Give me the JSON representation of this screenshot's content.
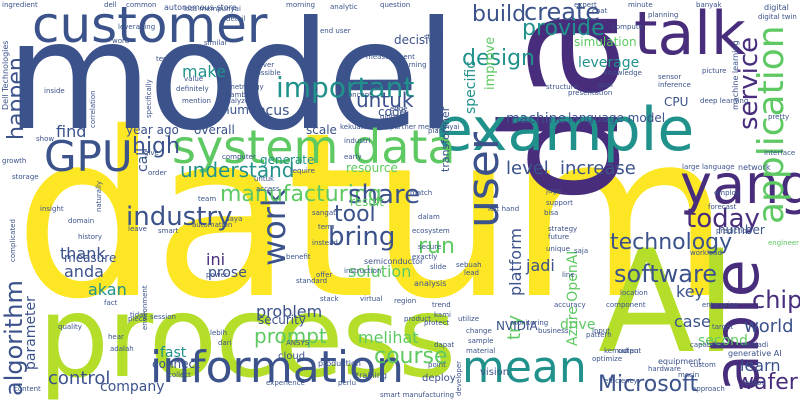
{
  "colors": {
    "background": "#ffffff",
    "navy": "#3b528b",
    "purple": "#472d7b",
    "teal": "#21918c",
    "green": "#5ec962",
    "lime": "#b5de2b",
    "yellow": "#fde725"
  },
  "words": [
    {
      "text": "datum",
      "color": "yellow"
    },
    {
      "text": "model",
      "color": "navy"
    },
    {
      "text": "dan",
      "color": "purple"
    },
    {
      "text": "process",
      "color": "lime"
    },
    {
      "text": "AI",
      "color": "lime"
    },
    {
      "text": "customer",
      "color": "navy"
    },
    {
      "text": "example",
      "color": "teal"
    },
    {
      "text": "talk",
      "color": "purple"
    },
    {
      "text": "system",
      "color": "green"
    },
    {
      "text": "data",
      "color": "green"
    },
    {
      "text": "yang",
      "color": "purple"
    },
    {
      "text": "information",
      "color": "navy"
    },
    {
      "text": "mean",
      "color": "teal"
    },
    {
      "text": "GPU",
      "color": "navy"
    },
    {
      "text": "user",
      "color": "navy"
    },
    {
      "text": "able",
      "color": "purple"
    },
    {
      "text": "work",
      "color": "navy"
    },
    {
      "text": "application",
      "color": "green"
    },
    {
      "text": "technology",
      "color": "navy"
    },
    {
      "text": "industry",
      "color": "navy"
    },
    {
      "text": "important",
      "color": "teal"
    },
    {
      "text": "software",
      "color": "navy"
    },
    {
      "text": "Microsoft",
      "color": "navy"
    },
    {
      "text": "algorithm",
      "color": "navy"
    },
    {
      "text": "manufacturing",
      "color": "green"
    },
    {
      "text": "course",
      "color": "green"
    },
    {
      "text": "create",
      "color": "navy"
    },
    {
      "text": "provide",
      "color": "teal"
    },
    {
      "text": "build",
      "color": "navy"
    },
    {
      "text": "design",
      "color": "teal"
    },
    {
      "text": "service",
      "color": "purple"
    },
    {
      "text": "today",
      "color": "purple"
    },
    {
      "text": "share",
      "color": "navy"
    },
    {
      "text": "bring",
      "color": "navy"
    },
    {
      "text": "tool",
      "color": "navy"
    },
    {
      "text": "run",
      "color": "green"
    },
    {
      "text": "high",
      "color": "navy"
    },
    {
      "text": "understand",
      "color": "teal"
    },
    {
      "text": "untuk",
      "color": "navy"
    },
    {
      "text": "happen",
      "color": "navy"
    },
    {
      "text": "find",
      "color": "navy"
    },
    {
      "text": "make",
      "color": "teal"
    },
    {
      "text": "level",
      "color": "navy"
    },
    {
      "text": "increase",
      "color": "navy"
    },
    {
      "text": "language model",
      "color": "navy"
    },
    {
      "text": "machine",
      "color": "navy"
    },
    {
      "text": "chip",
      "color": "purple"
    },
    {
      "text": "world",
      "color": "navy"
    },
    {
      "text": "learn",
      "color": "navy"
    },
    {
      "text": "wafer",
      "color": "purple"
    },
    {
      "text": "control",
      "color": "navy"
    },
    {
      "text": "company",
      "color": "navy"
    },
    {
      "text": "prompt",
      "color": "green"
    },
    {
      "text": "melihat",
      "color": "green"
    },
    {
      "text": "problem",
      "color": "navy"
    },
    {
      "text": "thank",
      "color": "navy"
    },
    {
      "text": "anda",
      "color": "navy"
    },
    {
      "text": "akan",
      "color": "teal"
    },
    {
      "text": "solution",
      "color": "green"
    },
    {
      "text": "platform",
      "color": "navy"
    },
    {
      "text": "jadi",
      "color": "navy"
    },
    {
      "text": "try",
      "color": "green"
    },
    {
      "text": "case",
      "color": "navy"
    },
    {
      "text": "key",
      "color": "navy"
    },
    {
      "text": "second",
      "color": "green"
    },
    {
      "text": "NVIDIA",
      "color": "navy"
    },
    {
      "text": "Azure OpenAI",
      "color": "green"
    },
    {
      "text": "drive",
      "color": "green"
    },
    {
      "text": "fast",
      "color": "teal"
    },
    {
      "text": "connect",
      "color": "navy"
    },
    {
      "text": "call",
      "color": "navy"
    },
    {
      "text": "parameter",
      "color": "navy"
    },
    {
      "text": "year ago",
      "color": "navy"
    },
    {
      "text": "overall",
      "color": "navy"
    },
    {
      "text": "scale",
      "color": "navy"
    },
    {
      "text": "focus",
      "color": "navy"
    },
    {
      "text": "human",
      "color": "navy"
    },
    {
      "text": "specific",
      "color": "teal"
    },
    {
      "text": "leverage",
      "color": "teal"
    },
    {
      "text": "CPU",
      "color": "navy"
    },
    {
      "text": "ini",
      "color": "purple"
    },
    {
      "text": "prose",
      "color": "navy"
    },
    {
      "text": "measure",
      "color": "navy"
    },
    {
      "text": "security",
      "color": "navy"
    },
    {
      "text": "result",
      "color": "green"
    },
    {
      "text": "resource",
      "color": "green"
    },
    {
      "text": "generate",
      "color": "teal"
    },
    {
      "text": "simulation",
      "color": "green"
    },
    {
      "text": "number",
      "color": "navy"
    },
    {
      "text": "code",
      "color": "navy"
    },
    {
      "text": "transformer",
      "color": "navy"
    },
    {
      "text": "improve",
      "color": "green"
    },
    {
      "text": "decision",
      "color": "navy"
    },
    {
      "text": "deploy",
      "color": "navy"
    },
    {
      "text": "vision",
      "color": "navy"
    },
    {
      "text": "cloud",
      "color": "navy"
    },
    {
      "text": "Dell Technologies",
      "color": "navy"
    },
    {
      "text": "autonomous store",
      "color": "navy"
    },
    {
      "text": "smart manufacturing",
      "color": "navy"
    },
    {
      "text": "generative AI",
      "color": "navy"
    },
    {
      "text": "large language",
      "color": "navy"
    },
    {
      "text": "network",
      "color": "navy"
    },
    {
      "text": "digital",
      "color": "navy"
    },
    {
      "text": "engineer",
      "color": "green"
    },
    {
      "text": "analysis",
      "color": "navy"
    },
    {
      "text": "semiconductor",
      "color": "navy"
    },
    {
      "text": "equipment",
      "color": "navy"
    },
    {
      "text": "production",
      "color": "navy"
    },
    {
      "text": "computer",
      "color": "navy"
    },
    {
      "text": "training",
      "color": "navy"
    },
    {
      "text": "monitoring",
      "color": "navy"
    },
    {
      "text": "sample",
      "color": "navy"
    },
    {
      "text": "business",
      "color": "navy"
    },
    {
      "text": "machine learning",
      "color": "navy"
    },
    {
      "text": "kita mempunyai",
      "color": "navy"
    },
    {
      "text": "session",
      "color": "navy"
    },
    {
      "text": "partner",
      "color": "navy"
    },
    {
      "text": "metrology",
      "color": "navy"
    },
    {
      "text": "chamber",
      "color": "navy"
    },
    {
      "text": "analyze",
      "color": "navy"
    },
    {
      "text": "ANSYS",
      "color": "navy"
    },
    {
      "text": "material",
      "color": "navy"
    },
    {
      "text": "change",
      "color": "navy"
    },
    {
      "text": "mempunyai",
      "color": "navy"
    },
    {
      "text": "interface",
      "color": "navy"
    },
    {
      "text": "workload",
      "color": "navy"
    },
    {
      "text": "enterprise",
      "color": "navy"
    },
    {
      "text": "presentation",
      "color": "navy"
    },
    {
      "text": "forecast",
      "color": "navy"
    },
    {
      "text": "access",
      "color": "navy"
    },
    {
      "text": "environment",
      "color": "navy"
    },
    {
      "text": "automation",
      "color": "navy"
    },
    {
      "text": "order",
      "color": "navy"
    },
    {
      "text": "dapat",
      "color": "navy"
    },
    {
      "text": "insight",
      "color": "navy"
    },
    {
      "text": "storage",
      "color": "navy"
    },
    {
      "text": "quality",
      "color": "navy"
    },
    {
      "text": "hardware",
      "color": "navy"
    },
    {
      "text": "optimize",
      "color": "navy"
    },
    {
      "text": "target",
      "color": "navy"
    },
    {
      "text": "custom",
      "color": "navy"
    },
    {
      "text": "content",
      "color": "navy"
    },
    {
      "text": "collect",
      "color": "navy"
    },
    {
      "text": "history",
      "color": "navy"
    },
    {
      "text": "utilize",
      "color": "navy"
    },
    {
      "text": "mesin",
      "color": "navy"
    },
    {
      "text": "banyak",
      "color": "navy"
    },
    {
      "text": "sebuah",
      "color": "navy"
    },
    {
      "text": "menjadi",
      "color": "navy"
    },
    {
      "text": "perlu",
      "color": "navy"
    },
    {
      "text": "dari",
      "color": "navy"
    },
    {
      "text": "saya",
      "color": "navy"
    },
    {
      "text": "reason",
      "color": "navy"
    },
    {
      "text": "deep learning",
      "color": "navy"
    },
    {
      "text": "trend",
      "color": "navy"
    },
    {
      "text": "pattern",
      "color": "navy"
    },
    {
      "text": "power",
      "color": "navy"
    },
    {
      "text": "stack",
      "color": "navy"
    },
    {
      "text": "future",
      "color": "navy"
    },
    {
      "text": "team",
      "color": "navy"
    },
    {
      "text": "leave",
      "color": "navy"
    },
    {
      "text": "ecosystem",
      "color": "navy"
    },
    {
      "text": "planning",
      "color": "navy"
    },
    {
      "text": "growth",
      "color": "navy"
    },
    {
      "text": "mention",
      "color": "navy"
    },
    {
      "text": "value",
      "color": "navy"
    },
    {
      "text": "possible",
      "color": "navy"
    },
    {
      "text": "server",
      "color": "navy"
    },
    {
      "text": "morning",
      "color": "navy"
    },
    {
      "text": "common",
      "color": "navy"
    },
    {
      "text": "chat",
      "color": "navy"
    },
    {
      "text": "global",
      "color": "navy"
    },
    {
      "text": "minute",
      "color": "navy"
    },
    {
      "text": "space",
      "color": "navy"
    },
    {
      "text": "plan",
      "color": "navy"
    },
    {
      "text": "concept",
      "color": "navy"
    },
    {
      "text": "early",
      "color": "navy"
    },
    {
      "text": "lead",
      "color": "navy"
    },
    {
      "text": "slide",
      "color": "navy"
    },
    {
      "text": "region",
      "color": "navy"
    },
    {
      "text": "developer",
      "color": "navy"
    },
    {
      "text": "point",
      "color": "navy"
    },
    {
      "text": "sensor",
      "color": "navy"
    },
    {
      "text": "pretty",
      "color": "navy"
    },
    {
      "text": "similar",
      "color": "navy"
    },
    {
      "text": "detail",
      "color": "navy"
    },
    {
      "text": "input",
      "color": "navy"
    },
    {
      "text": "output",
      "color": "navy"
    },
    {
      "text": "word",
      "color": "navy"
    },
    {
      "text": "test",
      "color": "navy"
    },
    {
      "text": "end user",
      "color": "navy"
    },
    {
      "text": "industri",
      "color": "navy"
    },
    {
      "text": "benefit",
      "color": "navy"
    },
    {
      "text": "instead",
      "color": "navy"
    },
    {
      "text": "require",
      "color": "navy"
    },
    {
      "text": "term",
      "color": "navy"
    },
    {
      "text": "match",
      "color": "navy"
    },
    {
      "text": "offer",
      "color": "navy"
    },
    {
      "text": "unique",
      "color": "navy"
    },
    {
      "text": "accuracy",
      "color": "navy"
    },
    {
      "text": "capability",
      "color": "navy"
    },
    {
      "text": "approach",
      "color": "navy"
    },
    {
      "text": "inference",
      "color": "navy"
    },
    {
      "text": "ingredient",
      "color": "navy"
    },
    {
      "text": "correlation",
      "color": "navy"
    },
    {
      "text": "specifically",
      "color": "navy"
    },
    {
      "text": "definitely",
      "color": "navy"
    },
    {
      "text": "structure",
      "color": "navy"
    },
    {
      "text": "kekuatan",
      "color": "navy"
    },
    {
      "text": "question",
      "color": "navy"
    },
    {
      "text": "stand",
      "color": "navy"
    },
    {
      "text": "goal",
      "color": "navy"
    },
    {
      "text": "expert",
      "color": "navy"
    },
    {
      "text": "learning",
      "color": "navy"
    },
    {
      "text": "measurement",
      "color": "navy"
    },
    {
      "text": "analytic",
      "color": "navy"
    },
    {
      "text": "employ",
      "color": "navy"
    },
    {
      "text": "picture",
      "color": "navy"
    },
    {
      "text": "kemudian",
      "color": "navy"
    },
    {
      "text": "adalah",
      "color": "navy"
    },
    {
      "text": "tidak",
      "color": "navy"
    },
    {
      "text": "dalam",
      "color": "navy"
    },
    {
      "text": "sangat",
      "color": "navy"
    },
    {
      "text": "saja",
      "color": "navy"
    },
    {
      "text": "kami",
      "color": "navy"
    },
    {
      "text": "juga",
      "color": "navy"
    },
    {
      "text": "bisa",
      "color": "navy"
    },
    {
      "text": "lebih",
      "color": "navy"
    },
    {
      "text": "untuk",
      "color": "navy"
    },
    {
      "text": "naturally",
      "color": "navy"
    },
    {
      "text": "leveraging",
      "color": "navy"
    },
    {
      "text": "experience",
      "color": "navy"
    },
    {
      "text": "efficiency",
      "color": "navy"
    },
    {
      "text": "complicated",
      "color": "navy"
    },
    {
      "text": "knowledge",
      "color": "navy"
    },
    {
      "text": "prediction",
      "color": "navy"
    },
    {
      "text": "virtual",
      "color": "navy"
    },
    {
      "text": "fact",
      "color": "navy"
    },
    {
      "text": "piece",
      "color": "navy"
    },
    {
      "text": "hear",
      "color": "navy"
    },
    {
      "text": "give",
      "color": "navy"
    },
    {
      "text": "show",
      "color": "navy"
    },
    {
      "text": "secure",
      "color": "navy"
    },
    {
      "text": "instruction",
      "color": "navy"
    },
    {
      "text": "exactly",
      "color": "navy"
    },
    {
      "text": "standard",
      "color": "navy"
    },
    {
      "text": "strategy",
      "color": "navy"
    },
    {
      "text": "protect",
      "color": "navy"
    },
    {
      "text": "component",
      "color": "navy"
    },
    {
      "text": "location",
      "color": "navy"
    },
    {
      "text": "compute",
      "color": "navy"
    },
    {
      "text": "digital twin",
      "color": "navy"
    },
    {
      "text": "inside",
      "color": "navy"
    },
    {
      "text": "left hand",
      "color": "navy"
    },
    {
      "text": "line",
      "color": "navy"
    },
    {
      "text": "dell",
      "color": "navy"
    },
    {
      "text": "smart",
      "color": "navy"
    },
    {
      "text": "product",
      "color": "navy"
    },
    {
      "text": "support",
      "color": "navy"
    },
    {
      "text": "edge",
      "color": "navy"
    },
    {
      "text": "domain",
      "color": "navy"
    }
  ]
}
